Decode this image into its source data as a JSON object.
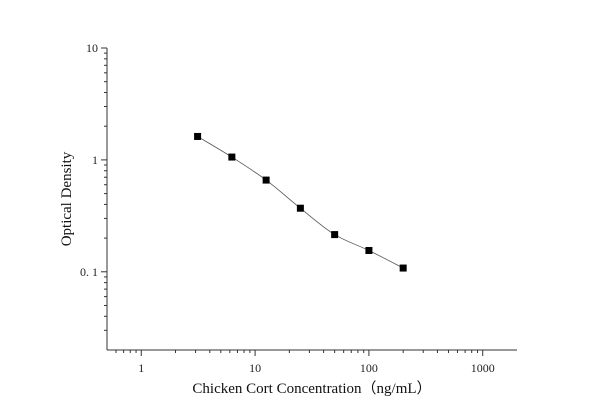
{
  "chart_data": {
    "type": "scatter",
    "xlabel": "Chicken Cort Concentration（ng/mL）",
    "ylabel": "Optical Density",
    "xscale": "log",
    "yscale": "log",
    "xlim": [
      0.5,
      2000
    ],
    "ylim": [
      0.02,
      10
    ],
    "x_ticks": [
      1,
      10,
      100,
      1000
    ],
    "x_tick_labels": [
      "1",
      "10",
      "100",
      "1000"
    ],
    "y_ticks": [
      0.1,
      1,
      10
    ],
    "y_tick_labels": [
      "0. 1",
      "1",
      "10"
    ],
    "grid": false,
    "series": [
      {
        "x": [
          3.125,
          6.25,
          12.5,
          25,
          50,
          100,
          200
        ],
        "y": [
          1.62,
          1.06,
          0.66,
          0.37,
          0.215,
          0.155,
          0.108
        ],
        "marker": "square",
        "color": "#000000",
        "fit_curve": true
      }
    ]
  }
}
